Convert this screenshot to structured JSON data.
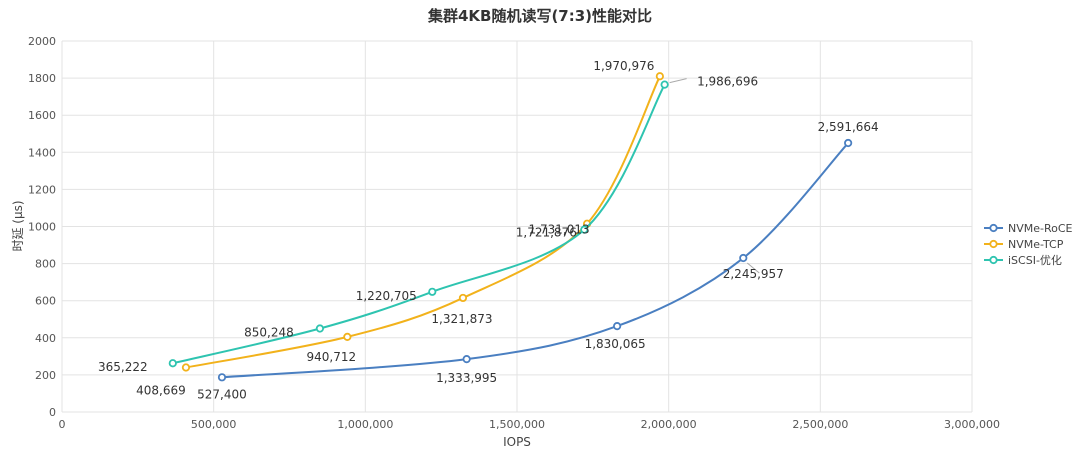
{
  "chart_data": {
    "type": "line",
    "title": "集群4KB随机读写(7:3)性能对比",
    "xlabel": "IOPS",
    "ylabel": "时延 (μs)",
    "xlim": [
      0,
      3000000
    ],
    "ylim": [
      0,
      2000
    ],
    "x_ticks": [
      0,
      500000,
      1000000,
      1500000,
      2000000,
      2500000,
      3000000
    ],
    "x_tick_labels": [
      "0",
      "500,000",
      "1,000,000",
      "1,500,000",
      "2,000,000",
      "2,500,000",
      "3,000,000"
    ],
    "y_ticks": [
      0,
      200,
      400,
      600,
      800,
      1000,
      1200,
      1400,
      1600,
      1800,
      2000
    ],
    "y_tick_labels": [
      "0",
      "200",
      "400",
      "600",
      "800",
      "1000",
      "1200",
      "1400",
      "1600",
      "1800",
      "2000"
    ],
    "grid": true,
    "legend_position": "right",
    "series": [
      {
        "name": "NVMe-RoCE",
        "color": "#4a7fc1",
        "points": [
          {
            "x": 527400,
            "y": 187,
            "label": "527,400"
          },
          {
            "x": 1333995,
            "y": 285,
            "label": "1,333,995"
          },
          {
            "x": 1830065,
            "y": 463,
            "label": "1,830,065"
          },
          {
            "x": 2245957,
            "y": 830,
            "label": "2,245,957"
          },
          {
            "x": 2591664,
            "y": 1450,
            "label": "2,591,664"
          }
        ]
      },
      {
        "name": "NVMe-TCP",
        "color": "#f2b21b",
        "points": [
          {
            "x": 408669,
            "y": 240,
            "label": "408,669"
          },
          {
            "x": 940712,
            "y": 405,
            "label": "940,712"
          },
          {
            "x": 1321873,
            "y": 615,
            "label": "1,321,873"
          },
          {
            "x": 1731013,
            "y": 1015,
            "label": "1,731,013"
          },
          {
            "x": 1970976,
            "y": 1810,
            "label": "1,970,976"
          }
        ]
      },
      {
        "name": "iSCSI-优化",
        "color": "#2ec4b0",
        "points": [
          {
            "x": 365222,
            "y": 263,
            "label": "365,222"
          },
          {
            "x": 850248,
            "y": 450,
            "label": "850,248"
          },
          {
            "x": 1220705,
            "y": 648,
            "label": "1,220,705"
          },
          {
            "x": 1721876,
            "y": 983,
            "label": "1,721,876"
          },
          {
            "x": 1986696,
            "y": 1765,
            "label": "1,986,696"
          }
        ]
      }
    ]
  }
}
